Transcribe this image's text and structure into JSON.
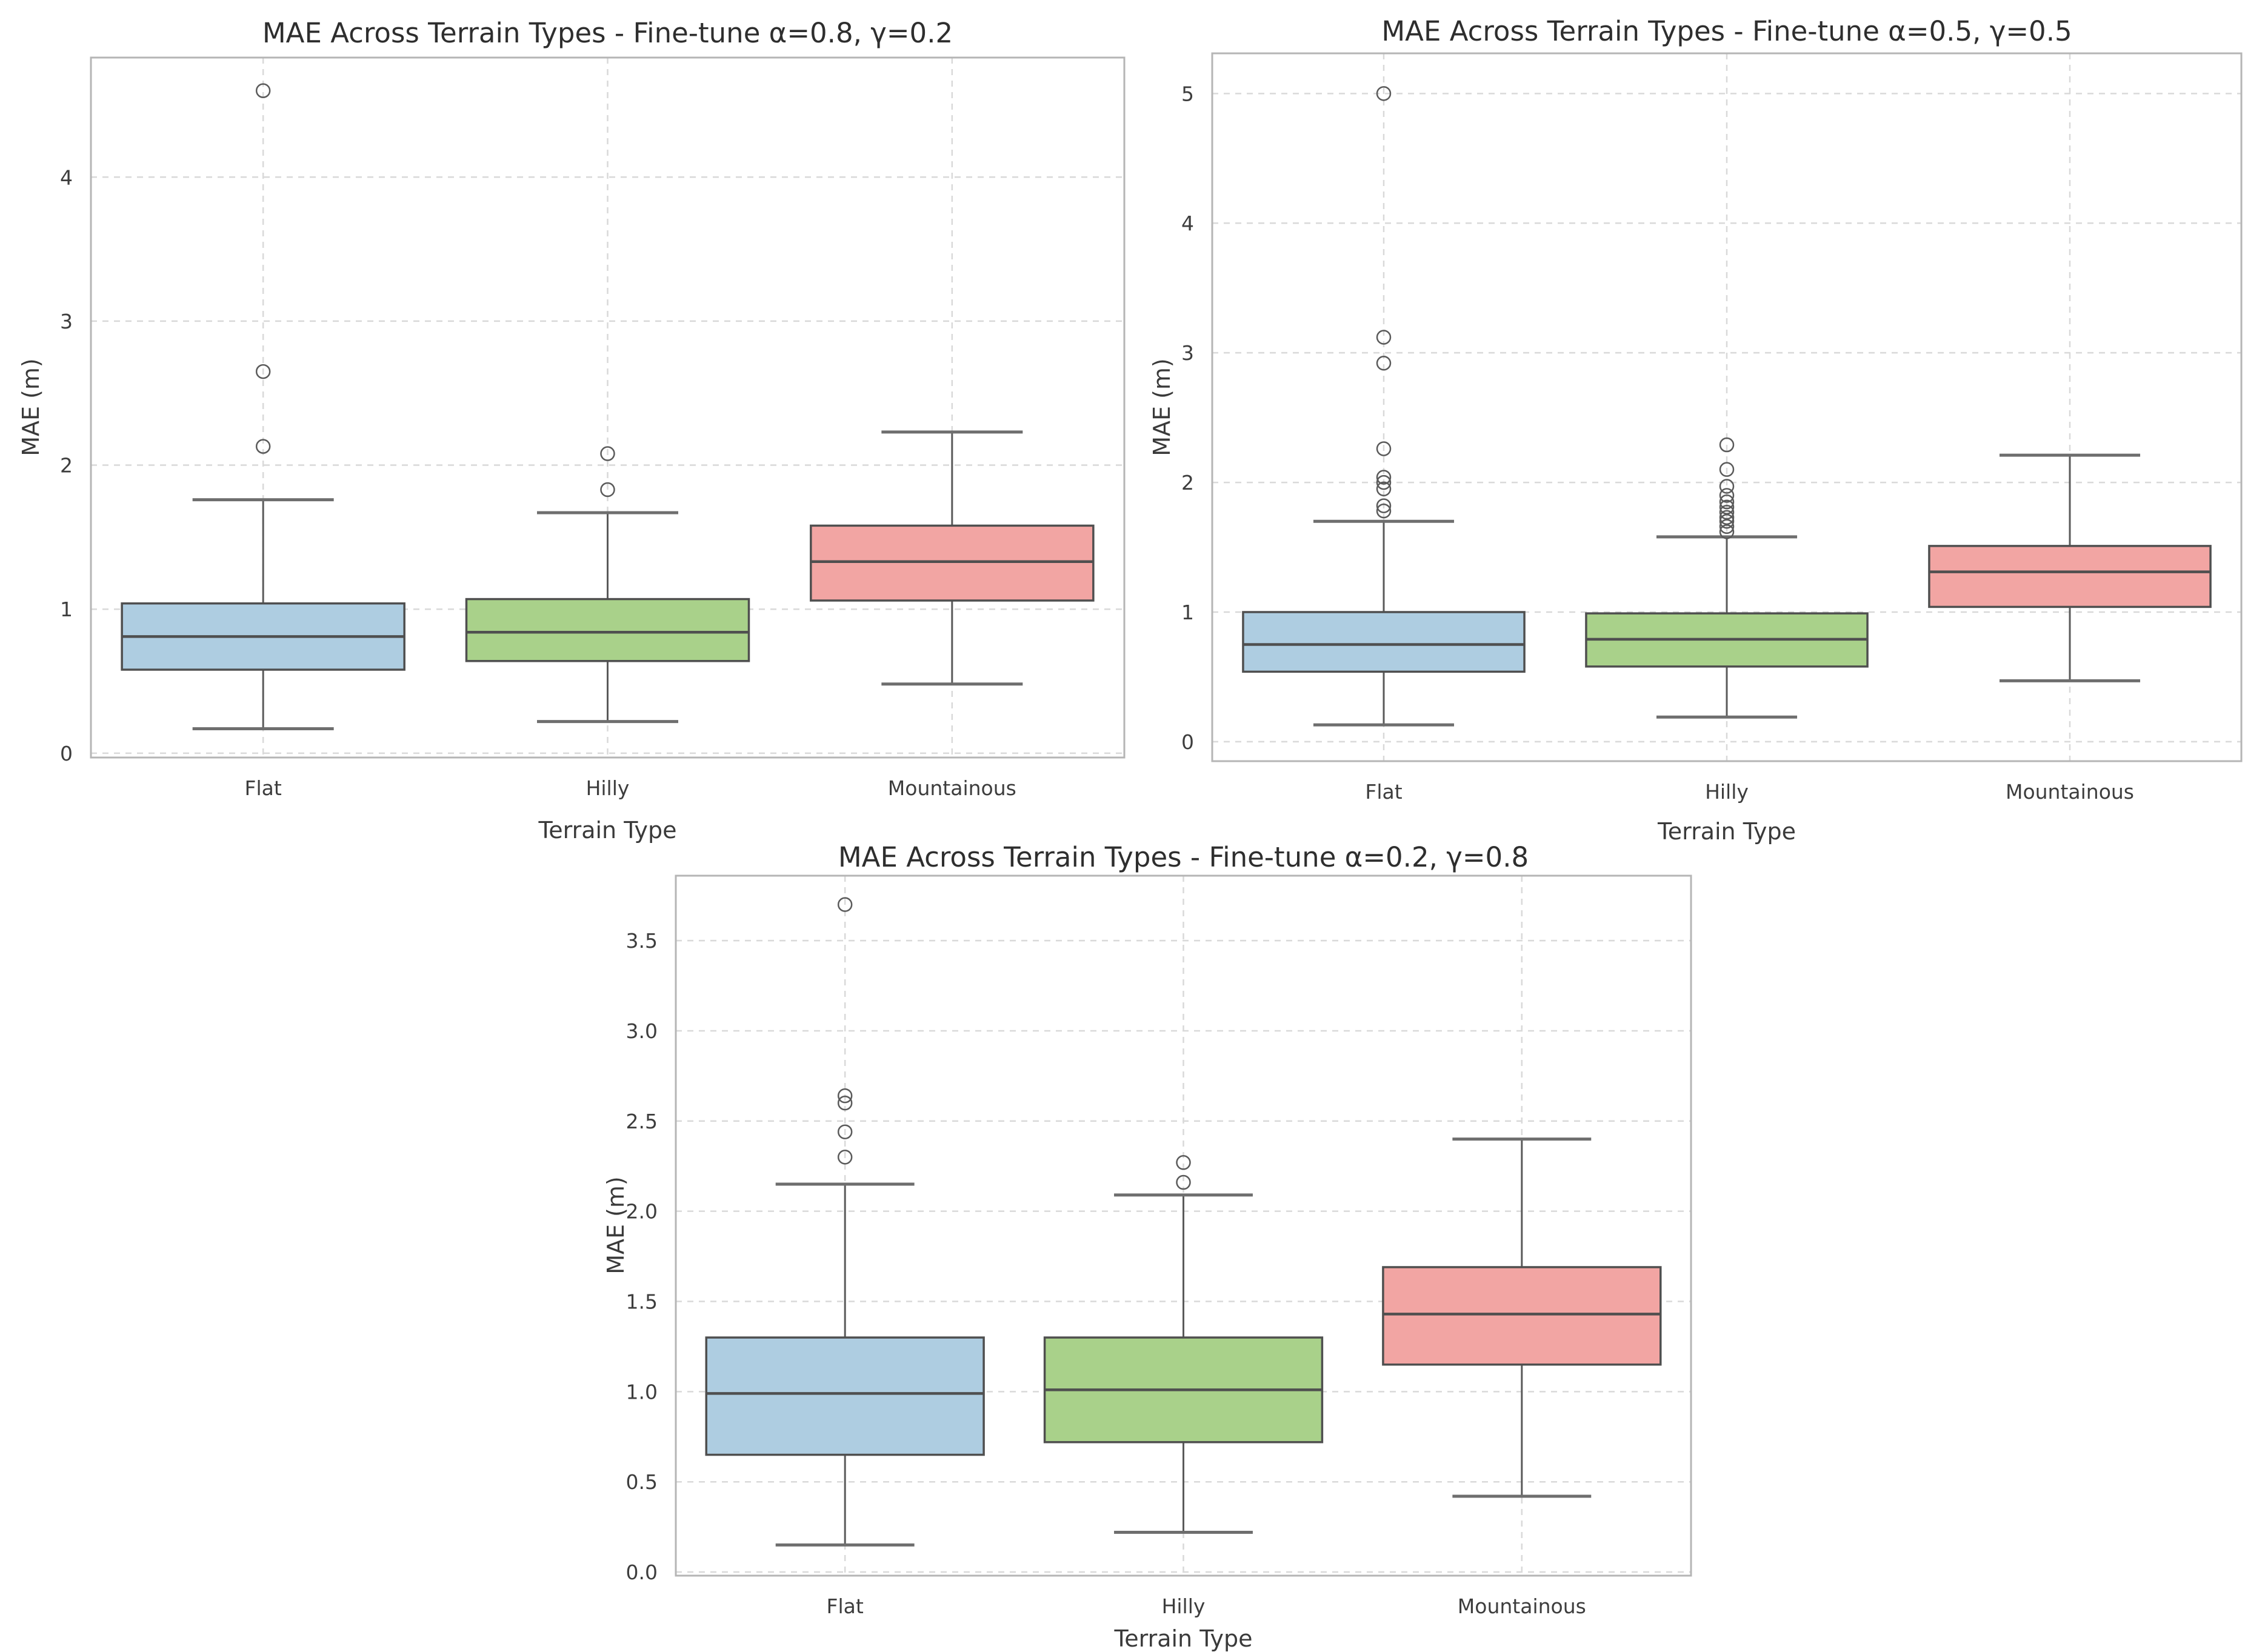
{
  "chart_data": [
    {
      "type": "box",
      "title": "MAE Across Terrain Types - Fine-tune α=0.8, γ=0.2",
      "xlabel": "Terrain Type",
      "ylabel": "MAE (m)",
      "categories": [
        "Flat",
        "Hilly",
        "Mountainous"
      ],
      "yticks": [
        0,
        1,
        2,
        3,
        4
      ],
      "ytick_labels": [
        "0",
        "1",
        "2",
        "3",
        "4"
      ],
      "ylim": [
        -0.03,
        4.83
      ],
      "grid": true,
      "legend": null,
      "series": [
        {
          "name": "Flat",
          "color": "#aecde1",
          "whisker_low": 0.17,
          "q1": 0.58,
          "median": 0.81,
          "q3": 1.04,
          "whisker_high": 1.76,
          "outliers": [
            2.13,
            2.65,
            4.6
          ]
        },
        {
          "name": "Hilly",
          "color": "#a9d18a",
          "whisker_low": 0.22,
          "q1": 0.64,
          "median": 0.84,
          "q3": 1.07,
          "whisker_high": 1.67,
          "outliers": [
            1.83,
            2.08
          ]
        },
        {
          "name": "Mountainous",
          "color": "#f2a5a3",
          "whisker_low": 0.48,
          "q1": 1.06,
          "median": 1.33,
          "q3": 1.58,
          "whisker_high": 2.23,
          "outliers": []
        }
      ]
    },
    {
      "type": "box",
      "title": "MAE Across Terrain Types - Fine-tune α=0.5, γ=0.5",
      "xlabel": "Terrain Type",
      "ylabel": "MAE (m)",
      "categories": [
        "Flat",
        "Hilly",
        "Mountainous"
      ],
      "yticks": [
        0,
        1,
        2,
        3,
        4,
        5
      ],
      "ytick_labels": [
        "0",
        "1",
        "2",
        "3",
        "4",
        "5"
      ],
      "ylim": [
        -0.15,
        5.31
      ],
      "grid": true,
      "legend": null,
      "series": [
        {
          "name": "Flat",
          "color": "#aecde1",
          "whisker_low": 0.13,
          "q1": 0.54,
          "median": 0.75,
          "q3": 1.0,
          "whisker_high": 1.7,
          "outliers": [
            1.78,
            1.82,
            1.95,
            2.0,
            2.04,
            2.26,
            2.92,
            3.12,
            5.0
          ]
        },
        {
          "name": "Hilly",
          "color": "#a9d18a",
          "whisker_low": 0.19,
          "q1": 0.58,
          "median": 0.79,
          "q3": 0.99,
          "whisker_high": 1.58,
          "outliers": [
            1.62,
            1.66,
            1.7,
            1.73,
            1.77,
            1.81,
            1.85,
            1.9,
            1.97,
            2.1,
            2.29
          ]
        },
        {
          "name": "Mountainous",
          "color": "#f2a5a3",
          "whisker_low": 0.47,
          "q1": 1.04,
          "median": 1.31,
          "q3": 1.51,
          "whisker_high": 2.21,
          "outliers": []
        }
      ]
    },
    {
      "type": "box",
      "title": "MAE Across Terrain Types - Fine-tune α=0.2, γ=0.8",
      "xlabel": "Terrain Type",
      "ylabel": "MAE (m)",
      "categories": [
        "Flat",
        "Hilly",
        "Mountainous"
      ],
      "yticks": [
        0,
        0.5,
        1,
        1.5,
        2,
        2.5,
        3,
        3.5
      ],
      "ytick_labels": [
        "0.0",
        "0.5",
        "1.0",
        "1.5",
        "2.0",
        "2.5",
        "3.0",
        "3.5"
      ],
      "ylim": [
        -0.02,
        3.86
      ],
      "grid": true,
      "legend": null,
      "series": [
        {
          "name": "Flat",
          "color": "#aecde1",
          "whisker_low": 0.15,
          "q1": 0.65,
          "median": 0.99,
          "q3": 1.3,
          "whisker_high": 2.15,
          "outliers": [
            2.3,
            2.44,
            2.6,
            2.64,
            3.7
          ]
        },
        {
          "name": "Hilly",
          "color": "#a9d18a",
          "whisker_low": 0.22,
          "q1": 0.72,
          "median": 1.01,
          "q3": 1.3,
          "whisker_high": 2.09,
          "outliers": [
            2.16,
            2.27
          ]
        },
        {
          "name": "Mountainous",
          "color": "#f2a5a3",
          "whisker_low": 0.42,
          "q1": 1.15,
          "median": 1.43,
          "q3": 1.69,
          "whisker_high": 2.4,
          "outliers": []
        }
      ]
    }
  ],
  "styles": {
    "box_edge_color": "#4f4f4f",
    "median_color": "#4f4f4f",
    "whisker_color": "#5a5a5a",
    "cap_color": "#6e6e6e",
    "outlier_color": "#5a5a5a",
    "grid_color": "#d9d9d9",
    "spine_color": "#b5b5b5",
    "tick_text_color": "#3d3d3d",
    "background": "#ffffff"
  }
}
